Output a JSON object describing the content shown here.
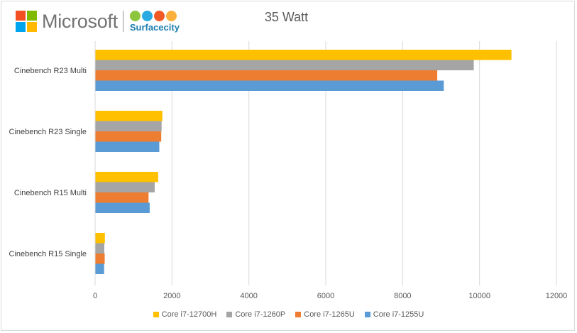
{
  "header": {
    "brand_name": "Microsoft",
    "partner_name": "Surfacecity",
    "ms_colors": [
      "#f25022",
      "#7fba00",
      "#00a4ef",
      "#ffb900"
    ],
    "partner_dot_colors": [
      "#8cc63f",
      "#29abe2",
      "#f15a24",
      "#fbb03b"
    ]
  },
  "chart_data": {
    "type": "bar",
    "orientation": "horizontal",
    "title": "35 Watt",
    "xlabel": "",
    "ylabel": "",
    "categories": [
      "Cinebench R23 Multi",
      "Cinebench R23 Single",
      "Cinebench R15 Multi",
      "Cinebench R15 Single"
    ],
    "series": [
      {
        "name": "Core i7-12700H",
        "color": "#ffc000",
        "values": [
          10830,
          1750,
          1640,
          255
        ]
      },
      {
        "name": "Core i7-1260P",
        "color": "#a5a5a5",
        "values": [
          9850,
          1730,
          1550,
          240
        ]
      },
      {
        "name": "Core i7-1265U",
        "color": "#ed7d31",
        "values": [
          8900,
          1720,
          1390,
          250
        ]
      },
      {
        "name": "Core i7-1255U",
        "color": "#5b9bd5",
        "values": [
          9070,
          1670,
          1420,
          235
        ]
      }
    ],
    "xlim": [
      0,
      12000
    ],
    "ticks": [
      "0",
      "2000",
      "4000",
      "6000",
      "8000",
      "10000",
      "12000"
    ],
    "grid": true,
    "legend_position": "bottom"
  }
}
